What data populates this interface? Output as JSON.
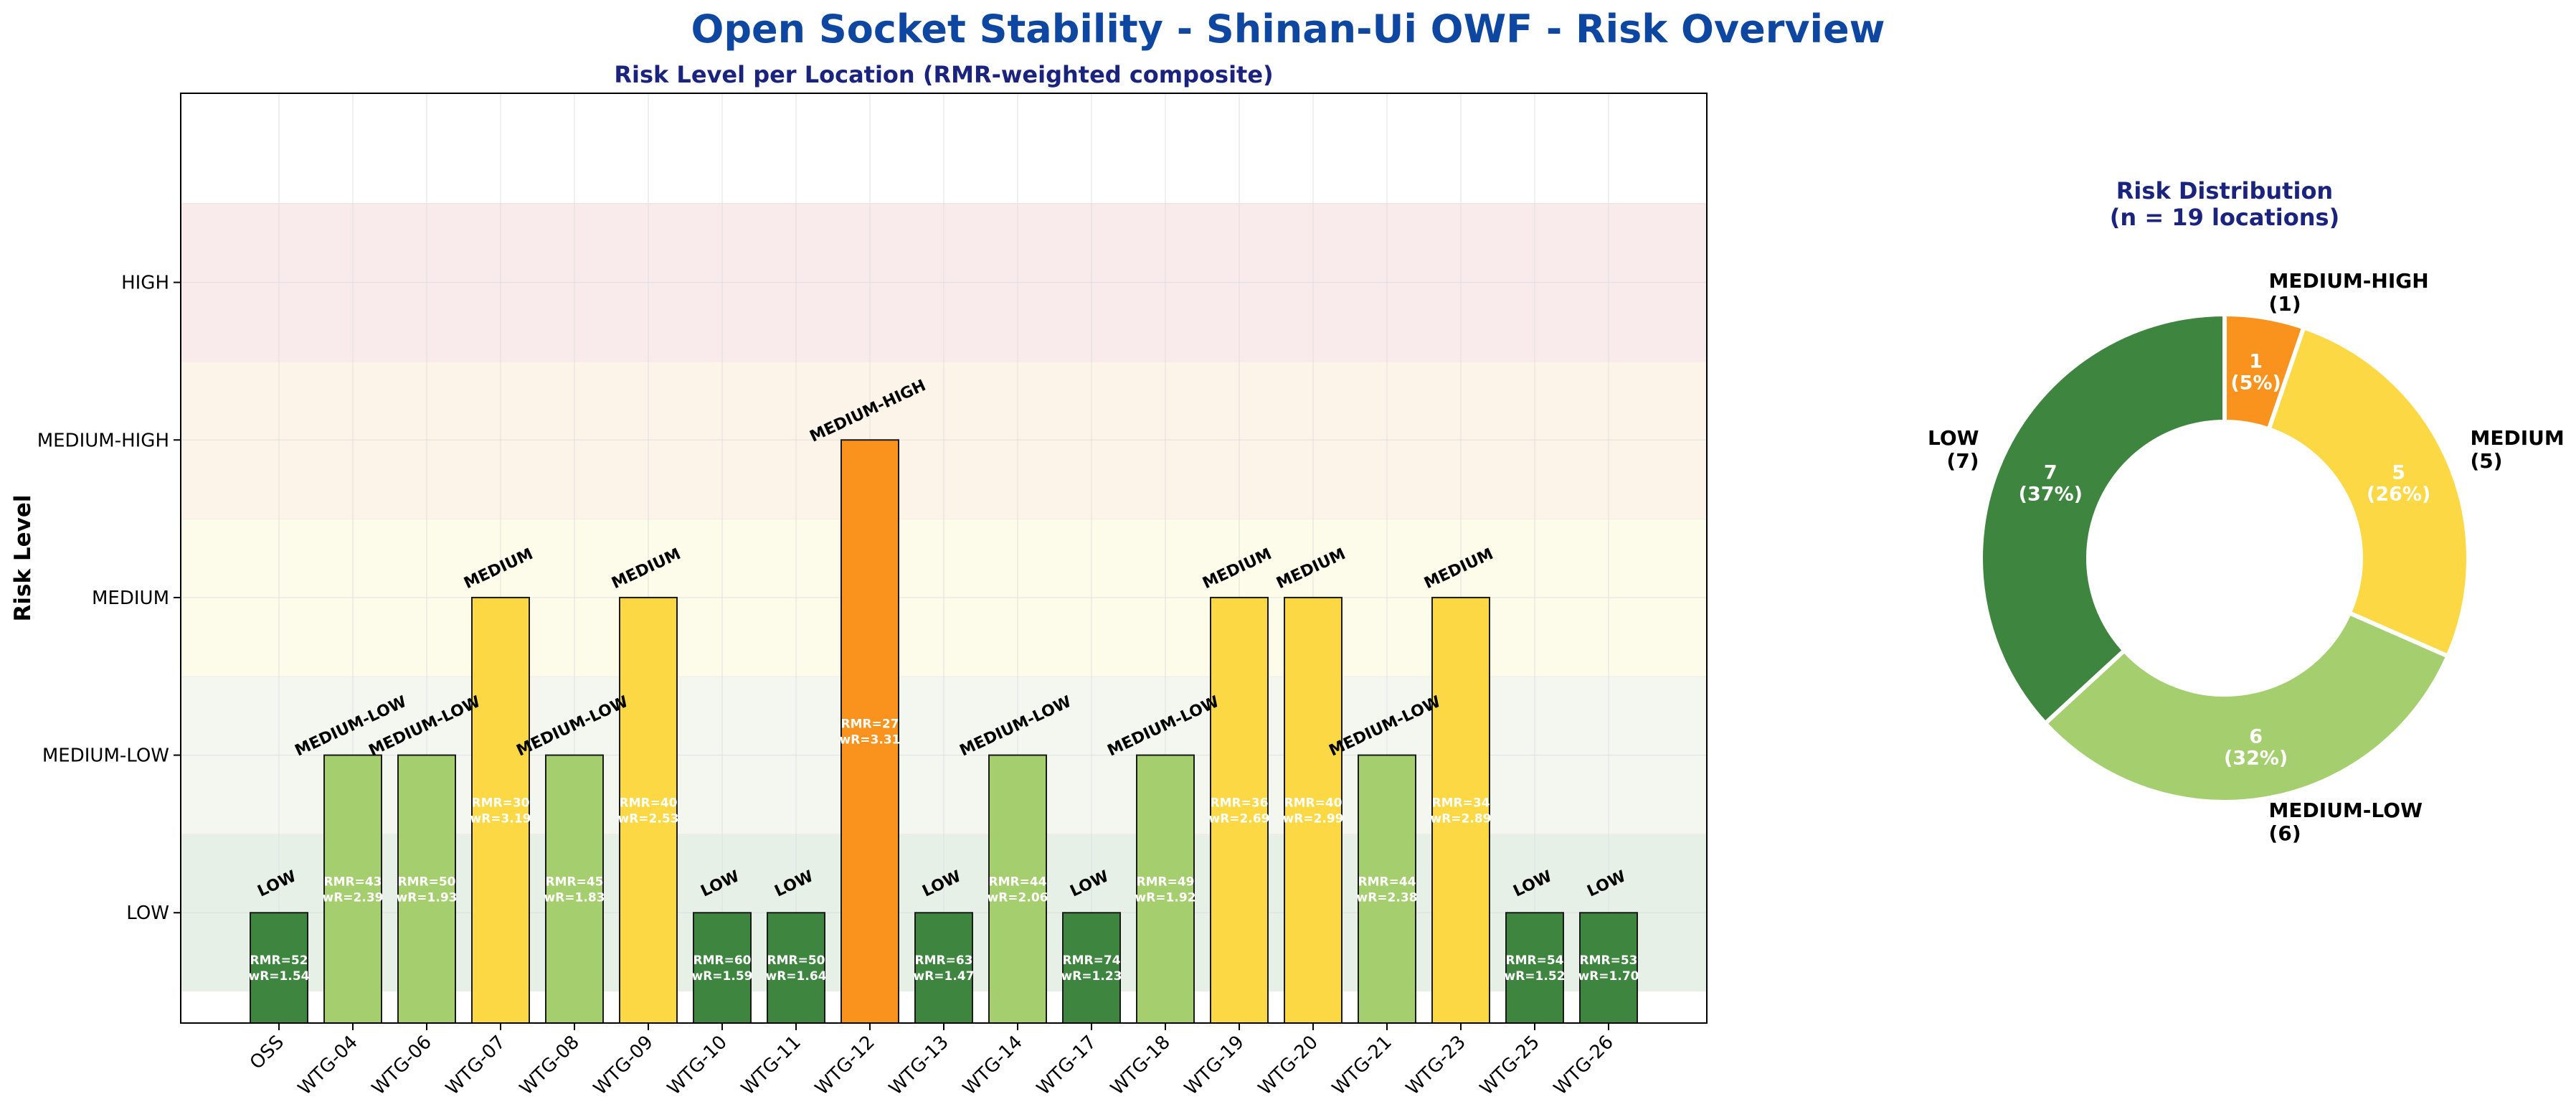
{
  "title": "Open Socket Stability - Shinan-Ui OWF - Risk Overview",
  "colors": {
    "LOW": "#3e8640",
    "MEDIUM-LOW": "#a5cf6f",
    "MEDIUM": "#fcd944",
    "MEDIUM-HIGH": "#f9931d",
    "HIGH": "#d32f2f",
    "title": "#0d47a1",
    "subtitle": "#1a237e",
    "band_LOW": "#e7f0e7",
    "band_MEDIUM-LOW": "#f3f7ef",
    "band_MEDIUM": "#fdfbea",
    "band_MEDIUM-HIGH": "#fcf3e9",
    "band_HIGH": "#f9eaec"
  },
  "chart_data": [
    {
      "type": "bar",
      "title": "Risk Level per Location (RMR-weighted composite)",
      "xlabel": "",
      "ylabel": "Risk Level",
      "y_categories": [
        "LOW",
        "MEDIUM-LOW",
        "MEDIUM",
        "MEDIUM-HIGH",
        "HIGH"
      ],
      "ylim": [
        0.3,
        6.2
      ],
      "grid": true,
      "categories": [
        "OSS",
        "WTG-04",
        "WTG-06",
        "WTG-07",
        "WTG-08",
        "WTG-09",
        "WTG-10",
        "WTG-11",
        "WTG-12",
        "WTG-13",
        "WTG-14",
        "WTG-17",
        "WTG-18",
        "WTG-19",
        "WTG-20",
        "WTG-21",
        "WTG-23",
        "WTG-25",
        "WTG-26"
      ],
      "values": [
        1,
        2,
        2,
        3,
        2,
        3,
        1,
        1,
        4,
        1,
        2,
        1,
        2,
        3,
        3,
        2,
        3,
        1,
        1
      ],
      "risk_labels": [
        "LOW",
        "MEDIUM-LOW",
        "MEDIUM-LOW",
        "MEDIUM",
        "MEDIUM-LOW",
        "MEDIUM",
        "LOW",
        "LOW",
        "MEDIUM-HIGH",
        "LOW",
        "MEDIUM-LOW",
        "LOW",
        "MEDIUM-LOW",
        "MEDIUM",
        "MEDIUM",
        "MEDIUM-LOW",
        "MEDIUM",
        "LOW",
        "LOW"
      ],
      "rmr_labels": [
        "RMR=52",
        "RMR=43",
        "RMR=50",
        "RMR=30",
        "RMR=45",
        "RMR=40",
        "RMR=60",
        "RMR=50",
        "RMR=27",
        "RMR=63",
        "RMR=44",
        "RMR=74",
        "RMR=49",
        "RMR=36",
        "RMR=40",
        "RMR=44",
        "RMR=34",
        "RMR=54",
        "RMR=53"
      ],
      "wr_labels": [
        "wR=1.54",
        "wR=2.39",
        "wR=1.93",
        "wR=3.19",
        "wR=1.83",
        "wR=2.53",
        "wR=1.59",
        "wR=1.64",
        "wR=3.31",
        "wR=1.47",
        "wR=2.06",
        "wR=1.23",
        "wR=1.92",
        "wR=2.69",
        "wR=2.99",
        "wR=2.38",
        "wR=2.89",
        "wR=1.52",
        "wR=1.70"
      ]
    },
    {
      "type": "pie",
      "title": "Risk Distribution",
      "subtitle": "(n = 19 locations)",
      "start_angle_deg": 90,
      "direction": "clockwise",
      "slices": [
        {
          "label": "MEDIUM-HIGH",
          "value": 1,
          "count_label": "(1)",
          "inner": "1",
          "pct": "(5%)"
        },
        {
          "label": "MEDIUM",
          "value": 5,
          "count_label": "(5)",
          "inner": "5",
          "pct": "(26%)"
        },
        {
          "label": "MEDIUM-LOW",
          "value": 6,
          "count_label": "(6)",
          "inner": "6",
          "pct": "(32%)"
        },
        {
          "label": "LOW",
          "value": 7,
          "count_label": "(7)",
          "inner": "7",
          "pct": "(37%)"
        }
      ]
    }
  ]
}
